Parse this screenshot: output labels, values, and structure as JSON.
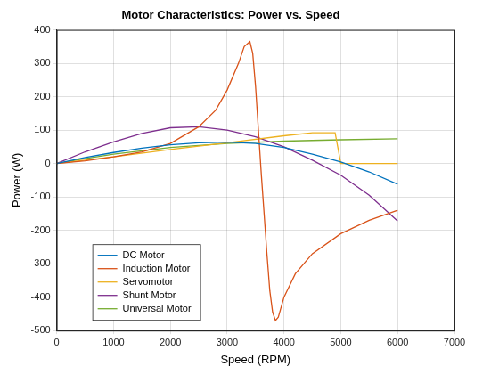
{
  "chart_data": {
    "type": "line",
    "title": "Motor Characteristics: Power vs. Speed",
    "x_label": "Speed (RPM)",
    "y_label": "Power (W)",
    "xlim": [
      0,
      7000
    ],
    "xticks": [
      0,
      1000,
      2000,
      3000,
      4000,
      5000,
      6000,
      7000
    ],
    "ylim": [
      -500,
      400
    ],
    "yticks": [
      -500,
      -400,
      -300,
      -200,
      -100,
      0,
      100,
      200,
      300,
      400
    ],
    "grid": true,
    "legend": "lower left",
    "series": [
      {
        "name": "DC Motor",
        "color": "#0072bd",
        "x": [
          0,
          500,
          1000,
          1500,
          2000,
          2500,
          3000,
          3500,
          4000,
          4500,
          5000,
          5500,
          6000
        ],
        "values": [
          0,
          18,
          33,
          46,
          56,
          62,
          64,
          60,
          48,
          28,
          5,
          -25,
          -62
        ]
      },
      {
        "name": "Induction Motor",
        "color": "#d95319",
        "x": [
          0,
          500,
          1000,
          1500,
          2000,
          2500,
          2800,
          3000,
          3200,
          3300,
          3400,
          3450,
          3500,
          3550,
          3600,
          3650,
          3700,
          3750,
          3800,
          3850,
          3900,
          3950,
          4000,
          4200,
          4500,
          5000,
          5500,
          6000
        ],
        "values": [
          0,
          8,
          20,
          35,
          60,
          110,
          160,
          220,
          300,
          350,
          365,
          330,
          230,
          100,
          -30,
          -150,
          -270,
          -380,
          -445,
          -470,
          -460,
          -430,
          -400,
          -330,
          -270,
          -210,
          -170,
          -140
        ]
      },
      {
        "name": "Servomotor",
        "color": "#edb120",
        "x": [
          0,
          1000,
          2000,
          3000,
          4000,
          4500,
          4900,
          5000,
          5500,
          6000
        ],
        "values": [
          0,
          20,
          42,
          62,
          83,
          92,
          92,
          0,
          0,
          0
        ]
      },
      {
        "name": "Shunt Motor",
        "color": "#7e2f8e",
        "x": [
          0,
          500,
          1000,
          1500,
          2000,
          2500,
          3000,
          3500,
          4000,
          4500,
          5000,
          5500,
          6000
        ],
        "values": [
          0,
          35,
          65,
          90,
          107,
          110,
          100,
          80,
          50,
          10,
          -35,
          -95,
          -172
        ]
      },
      {
        "name": "Universal Motor",
        "color": "#77ac30",
        "x": [
          0,
          500,
          1000,
          2000,
          3000,
          4000,
          5000,
          6000
        ],
        "values": [
          0,
          15,
          28,
          48,
          60,
          67,
          71,
          74
        ]
      }
    ]
  }
}
